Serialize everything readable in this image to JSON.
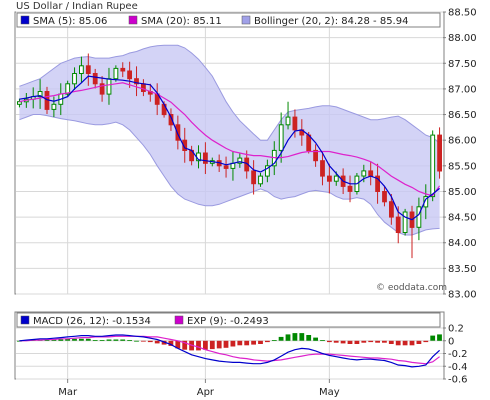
{
  "chart_data": [
    {
      "type": "candlestick",
      "title": "US Dollar / Indian Rupee",
      "watermark": "© eoddata.com",
      "ylim": [
        83.0,
        88.5
      ],
      "yticks": [
        "88.50",
        "88.00",
        "87.50",
        "87.00",
        "86.50",
        "86.00",
        "85.50",
        "85.00",
        "84.50",
        "84.00",
        "83.50",
        "83.00"
      ],
      "xticks": [
        "Mar",
        "Apr",
        "May"
      ],
      "grid": true,
      "legend": [
        {
          "label": "SMA (5): 85.06",
          "color": "#0000cc"
        },
        {
          "label": "SMA (20): 85.11",
          "color": "#cc00cc"
        },
        {
          "label": "Bollinger (20, 2): 84.28 - 85.94",
          "color": "#a0a0e8"
        }
      ],
      "colors": {
        "up": "#008800",
        "down": "#cc2222",
        "sma5": "#0000cc",
        "sma20": "#dd22cc",
        "band": "#c8c8f4",
        "bandEdge": "#9a9ae0"
      },
      "close": [
        86.75,
        86.8,
        86.85,
        86.95,
        86.6,
        86.7,
        86.9,
        87.1,
        87.3,
        87.45,
        87.3,
        87.1,
        86.9,
        87.2,
        87.4,
        87.35,
        87.2,
        87.1,
        86.95,
        86.9,
        86.7,
        86.5,
        86.3,
        86.0,
        85.8,
        85.6,
        85.75,
        85.55,
        85.6,
        85.5,
        85.45,
        85.55,
        85.65,
        85.4,
        85.15,
        85.3,
        85.5,
        85.8,
        86.3,
        86.45,
        86.2,
        86.1,
        85.8,
        85.6,
        85.3,
        85.2,
        85.3,
        85.1,
        85.0,
        85.3,
        85.4,
        85.3,
        85.0,
        84.8,
        84.5,
        84.2,
        84.6,
        84.3,
        84.7,
        84.9,
        86.1,
        85.4
      ],
      "sma5": [
        86.8,
        86.82,
        86.85,
        86.87,
        86.79,
        86.76,
        86.8,
        86.85,
        87.0,
        87.12,
        87.25,
        87.23,
        87.21,
        87.19,
        87.18,
        87.17,
        87.15,
        87.12,
        87.1,
        87.08,
        86.92,
        86.7,
        86.45,
        86.12,
        85.85,
        85.8,
        85.62,
        85.6,
        85.58,
        85.56,
        85.52,
        85.55,
        85.58,
        85.55,
        85.42,
        85.38,
        85.45,
        85.55,
        85.75,
        86.0,
        86.18,
        86.2,
        86.1,
        85.95,
        85.75,
        85.5,
        85.35,
        85.2,
        85.15,
        85.15,
        85.25,
        85.3,
        85.25,
        85.1,
        84.9,
        84.6,
        84.5,
        84.45,
        84.55,
        84.85,
        84.95,
        85.06
      ],
      "sma20": [
        86.75,
        86.78,
        86.8,
        86.82,
        86.85,
        86.87,
        86.9,
        86.92,
        86.95,
        86.97,
        87.0,
        87.03,
        87.06,
        87.08,
        87.1,
        87.12,
        87.08,
        87.04,
        87.0,
        86.95,
        86.9,
        86.82,
        86.74,
        86.62,
        86.5,
        86.35,
        86.22,
        86.1,
        86.0,
        85.92,
        85.84,
        85.78,
        85.75,
        85.72,
        85.7,
        85.7,
        85.68,
        85.66,
        85.66,
        85.68,
        85.72,
        85.76,
        85.78,
        85.78,
        85.78,
        85.78,
        85.75,
        85.72,
        85.7,
        85.67,
        85.63,
        85.58,
        85.5,
        85.4,
        85.3,
        85.22,
        85.14,
        85.08,
        85.0,
        84.95,
        84.92,
        85.11
      ],
      "bb_upper": [
        87.05,
        87.1,
        87.15,
        87.2,
        87.3,
        87.4,
        87.5,
        87.55,
        87.6,
        87.62,
        87.63,
        87.6,
        87.6,
        87.6,
        87.63,
        87.65,
        87.7,
        87.73,
        87.78,
        87.82,
        87.84,
        87.85,
        87.85,
        87.85,
        87.8,
        87.7,
        87.58,
        87.42,
        87.25,
        87.0,
        86.75,
        86.55,
        86.38,
        86.25,
        86.12,
        86.0,
        86.0,
        86.2,
        86.4,
        86.55,
        86.58,
        86.6,
        86.62,
        86.65,
        86.67,
        86.67,
        86.65,
        86.6,
        86.55,
        86.5,
        86.45,
        86.4,
        86.4,
        86.42,
        86.45,
        86.47,
        86.4,
        86.3,
        86.2,
        86.1,
        86.05,
        85.94
      ],
      "bb_lower": [
        86.4,
        86.45,
        86.5,
        86.5,
        86.48,
        86.45,
        86.42,
        86.4,
        86.38,
        86.35,
        86.32,
        86.3,
        86.3,
        86.32,
        86.35,
        86.3,
        86.2,
        86.05,
        85.9,
        85.72,
        85.5,
        85.3,
        85.1,
        84.95,
        84.85,
        84.8,
        84.75,
        84.72,
        84.72,
        84.75,
        84.8,
        84.85,
        84.9,
        84.95,
        85.0,
        85.05,
        85.0,
        84.9,
        84.85,
        84.88,
        84.9,
        84.95,
        85.0,
        85.02,
        85.0,
        84.98,
        84.9,
        84.85,
        84.85,
        84.88,
        84.85,
        84.75,
        84.55,
        84.4,
        84.3,
        84.2,
        84.15,
        84.15,
        84.2,
        84.25,
        84.27,
        84.28
      ]
    },
    {
      "type": "bar+line",
      "legend": [
        {
          "label": "MACD (26, 12): -0.1534",
          "color": "#0000cc"
        },
        {
          "label": "EXP (9): -0.2493",
          "color": "#cc00cc"
        }
      ],
      "ylim": [
        -0.6,
        0.2
      ],
      "yticks": [
        "0.2",
        "0",
        "-0.2",
        "-0.4",
        "-0.6"
      ],
      "colors": {
        "macd": "#0000cc",
        "exp": "#dd22cc",
        "histUp": "#008800",
        "histDown": "#cc2222"
      },
      "macd": [
        0.0,
        0.01,
        0.02,
        0.03,
        0.03,
        0.04,
        0.05,
        0.06,
        0.07,
        0.08,
        0.08,
        0.07,
        0.07,
        0.08,
        0.09,
        0.09,
        0.08,
        0.07,
        0.06,
        0.04,
        0.02,
        -0.02,
        -0.06,
        -0.12,
        -0.17,
        -0.22,
        -0.25,
        -0.28,
        -0.3,
        -0.32,
        -0.33,
        -0.34,
        -0.34,
        -0.35,
        -0.36,
        -0.36,
        -0.34,
        -0.3,
        -0.24,
        -0.18,
        -0.14,
        -0.12,
        -0.13,
        -0.16,
        -0.2,
        -0.23,
        -0.25,
        -0.27,
        -0.29,
        -0.3,
        -0.29,
        -0.29,
        -0.3,
        -0.31,
        -0.34,
        -0.38,
        -0.39,
        -0.41,
        -0.4,
        -0.38,
        -0.25,
        -0.15
      ],
      "exp": [
        0.0,
        0.0,
        0.01,
        0.01,
        0.02,
        0.02,
        0.03,
        0.03,
        0.04,
        0.05,
        0.05,
        0.06,
        0.06,
        0.06,
        0.07,
        0.07,
        0.07,
        0.07,
        0.07,
        0.06,
        0.06,
        0.04,
        0.02,
        0.0,
        -0.03,
        -0.07,
        -0.1,
        -0.14,
        -0.17,
        -0.2,
        -0.22,
        -0.25,
        -0.27,
        -0.28,
        -0.3,
        -0.31,
        -0.32,
        -0.31,
        -0.3,
        -0.28,
        -0.26,
        -0.24,
        -0.22,
        -0.21,
        -0.21,
        -0.21,
        -0.22,
        -0.23,
        -0.24,
        -0.25,
        -0.26,
        -0.27,
        -0.27,
        -0.28,
        -0.29,
        -0.31,
        -0.32,
        -0.34,
        -0.35,
        -0.36,
        -0.33,
        -0.25
      ],
      "hist": [
        0.0,
        0.01,
        0.01,
        0.02,
        0.01,
        0.02,
        0.02,
        0.03,
        0.03,
        0.03,
        0.03,
        0.01,
        0.01,
        0.02,
        0.02,
        0.02,
        0.01,
        0.0,
        -0.01,
        -0.02,
        -0.04,
        -0.06,
        -0.08,
        -0.12,
        -0.14,
        -0.15,
        -0.15,
        -0.14,
        -0.13,
        -0.12,
        -0.11,
        -0.09,
        -0.07,
        -0.07,
        -0.06,
        -0.05,
        -0.02,
        0.01,
        0.06,
        0.1,
        0.12,
        0.12,
        0.09,
        0.05,
        0.01,
        -0.02,
        -0.03,
        -0.04,
        -0.05,
        -0.05,
        -0.03,
        -0.02,
        -0.03,
        -0.03,
        -0.05,
        -0.07,
        -0.07,
        -0.07,
        -0.05,
        -0.02,
        0.08,
        0.1
      ]
    }
  ]
}
